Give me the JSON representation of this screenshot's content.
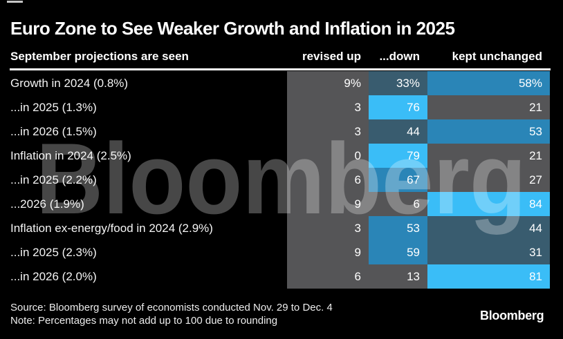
{
  "title": "Euro Zone to See Weaker Growth and Inflation in 2025",
  "header": {
    "label": "September projections are seen",
    "columns": [
      "revised up",
      "...down",
      "kept unchanged"
    ]
  },
  "rows": [
    {
      "label": "Growth in 2024 (0.8%)",
      "values": [
        "9%",
        "33%",
        "58%"
      ]
    },
    {
      "label": "...in 2025 (1.3%)",
      "values": [
        "3",
        "76",
        "21"
      ]
    },
    {
      "label": "...in 2026 (1.5%)",
      "values": [
        "3",
        "44",
        "53"
      ]
    },
    {
      "label": "Inflation in 2024 (2.5%)",
      "values": [
        "0",
        "79",
        "21"
      ]
    },
    {
      "label": "...in 2025 (2.2%)",
      "values": [
        "6",
        "67",
        "27"
      ]
    },
    {
      "label": "...2026 (1.9%)",
      "values": [
        "9",
        "6",
        "84"
      ]
    },
    {
      "label": "Inflation ex-energy/food in 2024 (2.9%)",
      "values": [
        "3",
        "53",
        "44"
      ]
    },
    {
      "label": "...in 2025 (2.3%)",
      "values": [
        "9",
        "59",
        "31"
      ]
    },
    {
      "label": "...in 2026 (2.0%)",
      "values": [
        "6",
        "13",
        "81"
      ]
    }
  ],
  "chart_data": {
    "type": "heatmap",
    "title": "Euro Zone to See Weaker Growth and Inflation in 2025",
    "subtitle": "September projections are seen",
    "columns": [
      "revised up",
      "...down",
      "kept unchanged"
    ],
    "row_labels": [
      "Growth in 2024 (0.8%)",
      "...in 2025 (1.3%)",
      "...in 2026 (1.5%)",
      "Inflation in 2024 (2.5%)",
      "...in 2025 (2.2%)",
      "...2026 (1.9%)",
      "Inflation ex-energy/food in 2024 (2.9%)",
      "...in 2025 (2.3%)",
      "...in 2026 (2.0%)"
    ],
    "values": [
      [
        9,
        33,
        58
      ],
      [
        3,
        76,
        21
      ],
      [
        3,
        44,
        53
      ],
      [
        0,
        79,
        21
      ],
      [
        6,
        67,
        27
      ],
      [
        9,
        6,
        84
      ],
      [
        3,
        53,
        44
      ],
      [
        9,
        59,
        31
      ],
      [
        6,
        13,
        81
      ]
    ],
    "unit": "%",
    "legend_position": "none",
    "color_bins": [
      {
        "max": 29,
        "color": "#555557"
      },
      {
        "max": 49,
        "color": "#395c6f"
      },
      {
        "max": 69,
        "color": "#2a85b7"
      },
      {
        "max": 100,
        "color": "#3abdf7"
      }
    ],
    "background_color": "#000000"
  },
  "watermark": "Bloomberg",
  "footer": {
    "source": "Source: Bloomberg survey of economists conducted Nov. 29 to Dec. 4",
    "note": "Note: Percentages may not add up to 100 due to rounding",
    "logo": "Bloomberg"
  }
}
